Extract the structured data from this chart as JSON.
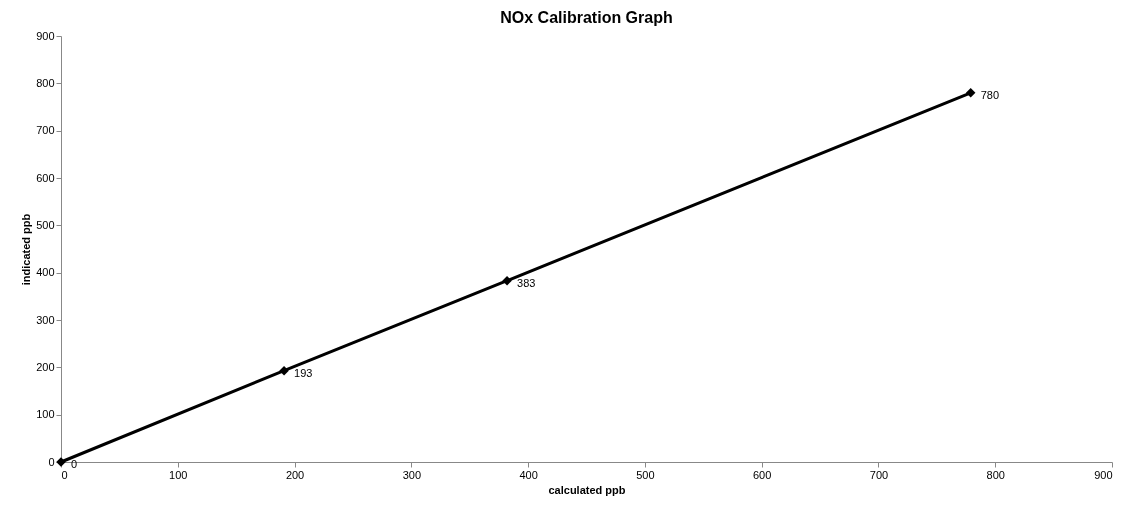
{
  "chart_data": {
    "type": "line",
    "title": "NOx Calibration Graph",
    "xlabel": "calculated ppb",
    "ylabel": "indicated ppb",
    "x": [
      0,
      191,
      382,
      779
    ],
    "series": [
      {
        "color": "#000000",
        "values": [
          0,
          193,
          383,
          780
        ]
      }
    ],
    "xlim": [
      0,
      900
    ],
    "xticks": [
      0,
      100,
      200,
      300,
      400,
      500,
      600,
      700,
      800,
      900
    ],
    "ylim": [
      0,
      900
    ],
    "yticks": [
      0,
      100,
      200,
      300,
      400,
      500,
      600,
      700,
      800,
      900
    ],
    "grid": false,
    "legend": false,
    "marker": "diamond",
    "line_style": "solid",
    "data_labels": true
  }
}
